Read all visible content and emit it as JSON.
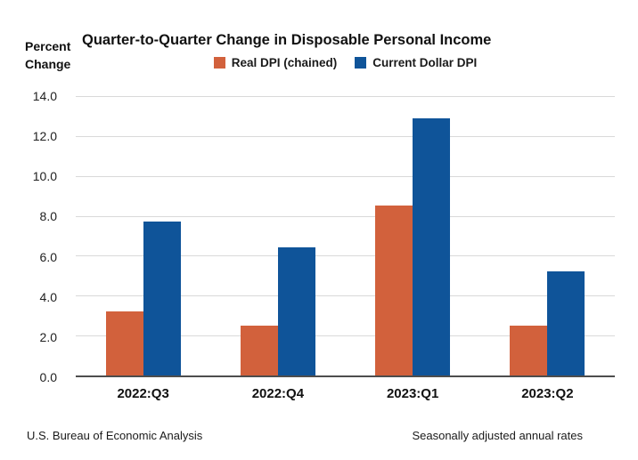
{
  "chart": {
    "title": "Quarter-to-Quarter Change in Disposable Personal Income"
  },
  "y_axis_title": {
    "line1": "Percent",
    "line2": "Change"
  },
  "footer": {
    "left": "U.S. Bureau of Economic Analysis",
    "right": "Seasonally adjusted annual rates"
  },
  "chart_data": {
    "type": "bar",
    "title": "Quarter-to-Quarter Change in Disposable Personal Income",
    "categories": [
      "2022:Q3",
      "2022:Q4",
      "2023:Q1",
      "2023:Q2"
    ],
    "series": [
      {
        "name": "Real DPI (chained)",
        "color": "#d2613c",
        "values": [
          3.2,
          2.5,
          8.5,
          2.5
        ]
      },
      {
        "name": "Current Dollar DPI",
        "color": "#0f5499",
        "values": [
          7.7,
          6.4,
          12.9,
          5.2
        ]
      }
    ],
    "xlabel": "",
    "ylabel": "Percent Change",
    "ylim": [
      0,
      14
    ],
    "ytick_step": 2,
    "ytick_decimals": 1,
    "grid": true,
    "legend_position": "top",
    "footnote_left": "U.S. Bureau of Economic Analysis",
    "footnote_right": "Seasonally adjusted annual rates"
  }
}
